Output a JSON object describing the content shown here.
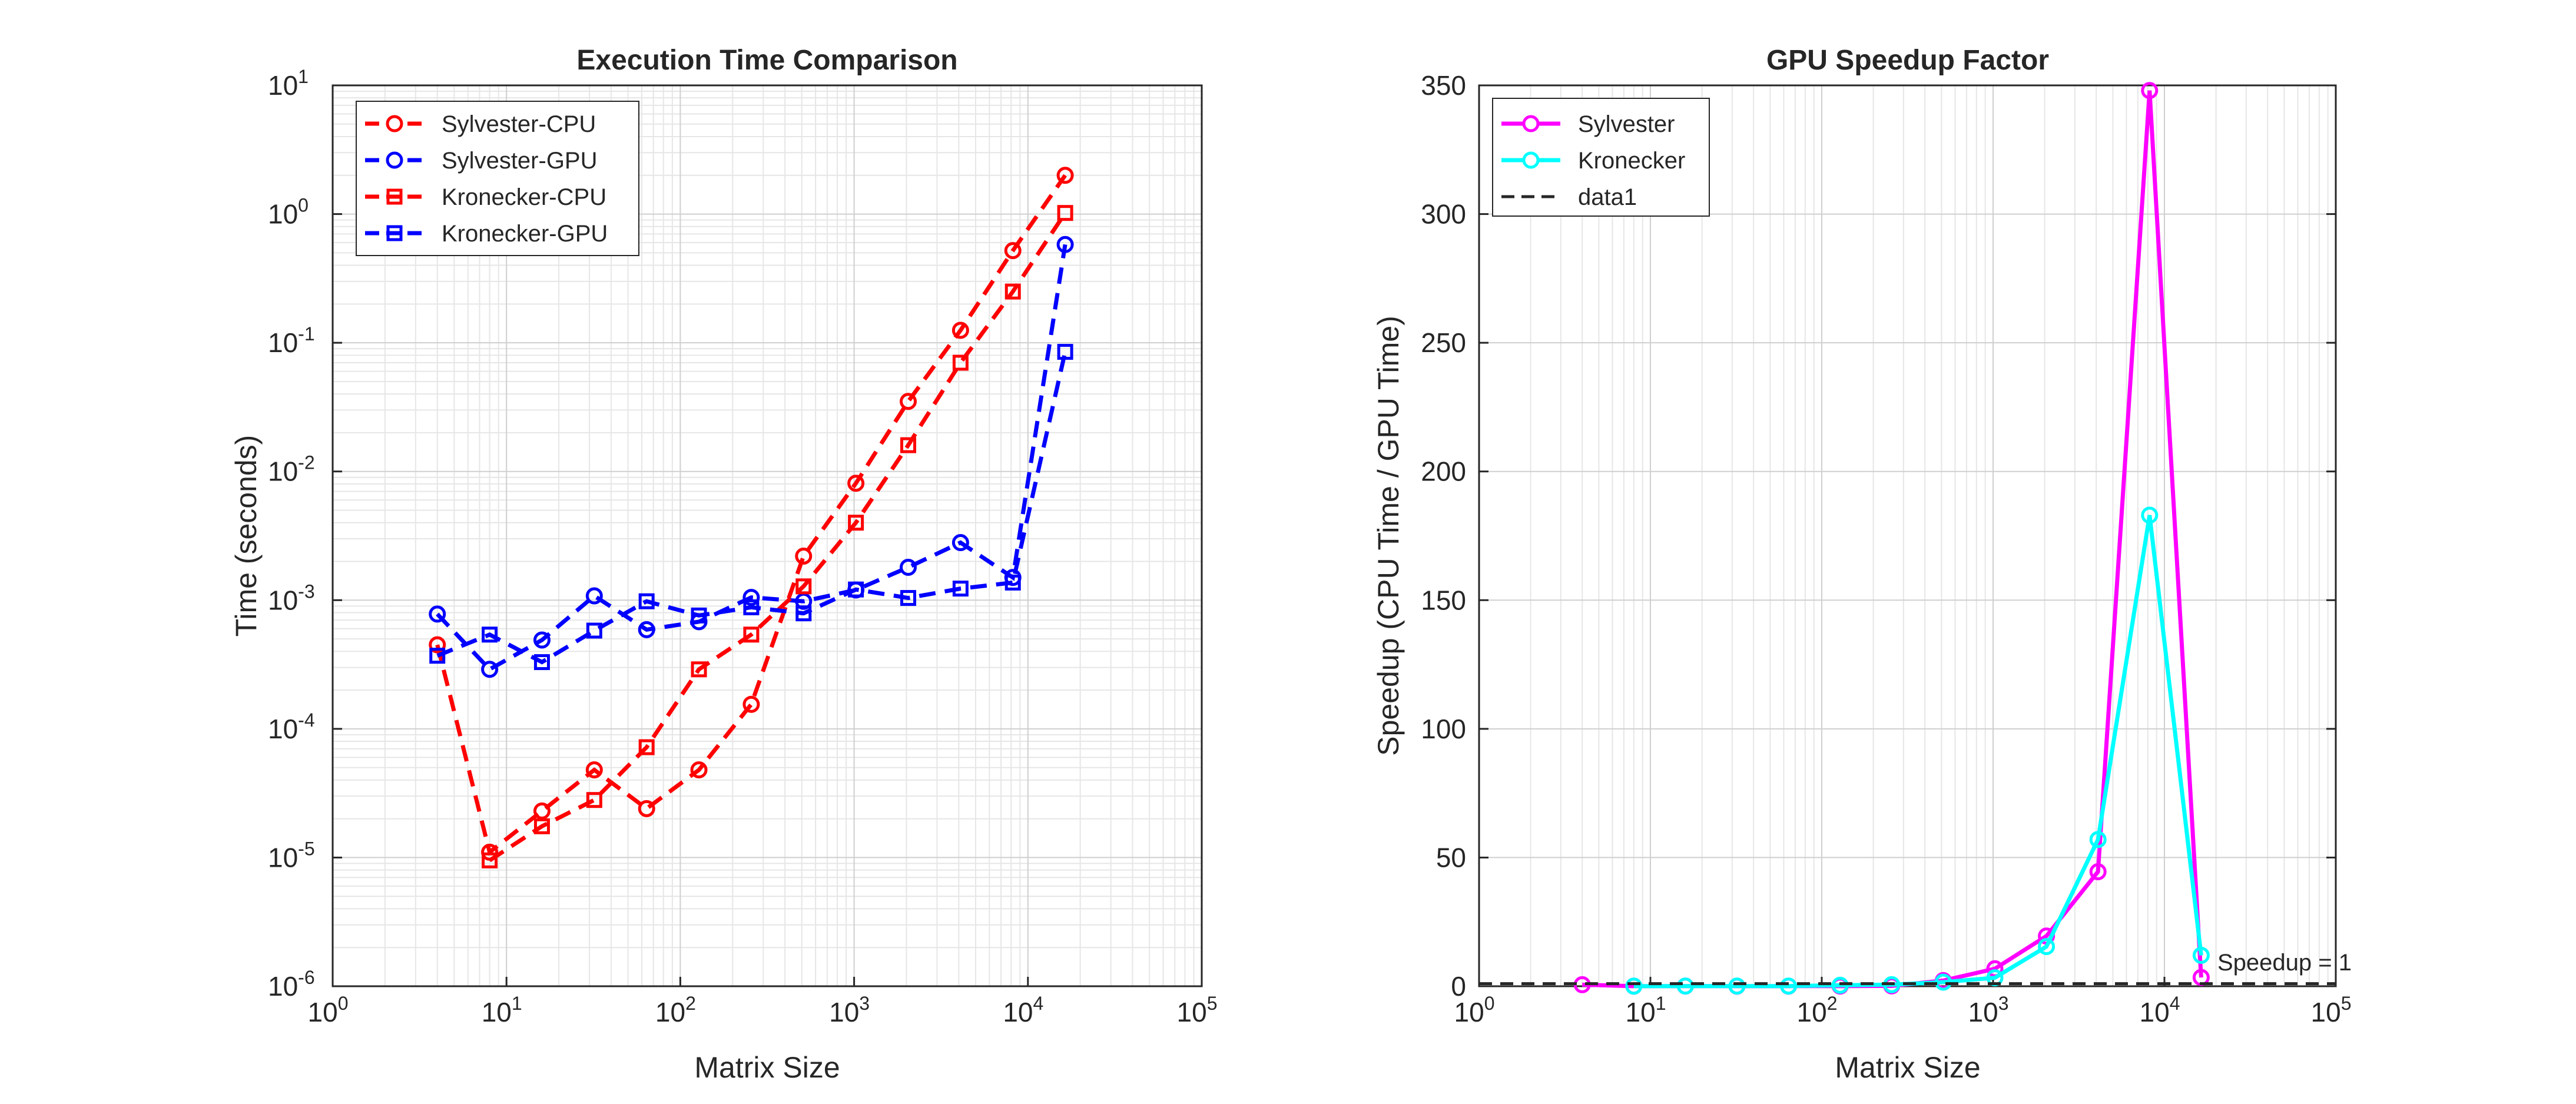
{
  "chart_data": [
    {
      "type": "line",
      "title": "Execution Time Comparison",
      "xlabel": "Matrix Size",
      "ylabel": "Time (seconds)",
      "xscale": "log",
      "yscale": "log",
      "xlim": [
        1,
        100000
      ],
      "ylim": [
        1e-06,
        10
      ],
      "xticks": [
        {
          "base": "10",
          "exp": "0"
        },
        {
          "base": "10",
          "exp": "1"
        },
        {
          "base": "10",
          "exp": "2"
        },
        {
          "base": "10",
          "exp": "3"
        },
        {
          "base": "10",
          "exp": "4"
        },
        {
          "base": "10",
          "exp": "5"
        }
      ],
      "yticks": [
        {
          "base": "10",
          "exp": "-6"
        },
        {
          "base": "10",
          "exp": "-5"
        },
        {
          "base": "10",
          "exp": "-4"
        },
        {
          "base": "10",
          "exp": "-3"
        },
        {
          "base": "10",
          "exp": "-2"
        },
        {
          "base": "10",
          "exp": "-1"
        },
        {
          "base": "10",
          "exp": "0"
        },
        {
          "base": "10",
          "exp": "1"
        }
      ],
      "grid": true,
      "minor_grid": true,
      "legend_position": "top-left",
      "x": [
        4,
        8,
        16,
        32,
        64,
        128,
        256,
        512,
        1024,
        2048,
        4096,
        8192,
        16384
      ],
      "series": [
        {
          "name": "Sylvester-CPU",
          "color": "#ff0000",
          "line": "dashed",
          "marker": "circle",
          "values": [
            0.00045,
            1.1e-05,
            2.3e-05,
            4.8e-05,
            2.4e-05,
            4.8e-05,
            0.000155,
            0.0022,
            0.0081,
            0.035,
            0.125,
            0.52,
            2.0
          ]
        },
        {
          "name": "Sylvester-GPU",
          "color": "#0000ff",
          "line": "dashed",
          "marker": "circle",
          "values": [
            0.00078,
            0.00029,
            0.00049,
            0.00108,
            0.00059,
            0.00068,
            0.00105,
            0.00098,
            0.0012,
            0.0018,
            0.0028,
            0.0015,
            0.58
          ]
        },
        {
          "name": "Kronecker-CPU",
          "color": "#ff0000",
          "line": "dashed",
          "marker": "square",
          "values": [
            null,
            9.5e-06,
            1.75e-05,
            2.8e-05,
            7.2e-05,
            0.00029,
            0.00054,
            0.00128,
            0.004,
            0.016,
            0.07,
            0.25,
            1.02
          ]
        },
        {
          "name": "Kronecker-GPU",
          "color": "#0000ff",
          "line": "dashed",
          "marker": "square",
          "values": [
            0.00037,
            0.00054,
            0.00033,
            0.00058,
            0.00098,
            0.00076,
            0.00088,
            0.00079,
            0.00121,
            0.00104,
            0.00123,
            0.00137,
            0.085
          ]
        }
      ]
    },
    {
      "type": "line",
      "title": "GPU Speedup Factor",
      "xlabel": "Matrix Size",
      "ylabel": "Speedup (CPU Time / GPU Time)",
      "xscale": "log",
      "xlim": [
        1,
        100000
      ],
      "ylim": [
        0,
        350
      ],
      "xticks": [
        {
          "base": "10",
          "exp": "0"
        },
        {
          "base": "10",
          "exp": "1"
        },
        {
          "base": "10",
          "exp": "2"
        },
        {
          "base": "10",
          "exp": "3"
        },
        {
          "base": "10",
          "exp": "4"
        },
        {
          "base": "10",
          "exp": "5"
        }
      ],
      "yticks": [
        "0",
        "50",
        "100",
        "150",
        "200",
        "250",
        "300",
        "350"
      ],
      "grid": true,
      "minor_grid": true,
      "legend_position": "top-left",
      "x": [
        4,
        8,
        16,
        32,
        64,
        128,
        256,
        512,
        1024,
        2048,
        4096,
        8192,
        16384
      ],
      "series": [
        {
          "name": "Sylvester",
          "color": "#ff00ff",
          "line": "solid",
          "marker": "circle",
          "values": [
            0.6,
            0.04,
            0.05,
            0.04,
            0.04,
            0.07,
            0.15,
            2.2,
            6.8,
            19.5,
            44.5,
            348,
            3.4
          ]
        },
        {
          "name": "Kronecker",
          "color": "#00ffff",
          "line": "solid",
          "marker": "circle",
          "values": [
            null,
            0.02,
            0.05,
            0.05,
            0.07,
            0.38,
            0.61,
            1.6,
            3.3,
            15.4,
            57,
            183,
            12
          ]
        },
        {
          "name": "data1",
          "color": "#262626",
          "line": "dashed",
          "marker": "none",
          "values": "constant",
          "constant": 1
        }
      ],
      "annotations": [
        {
          "text": "Speedup = 1"
        }
      ]
    }
  ]
}
